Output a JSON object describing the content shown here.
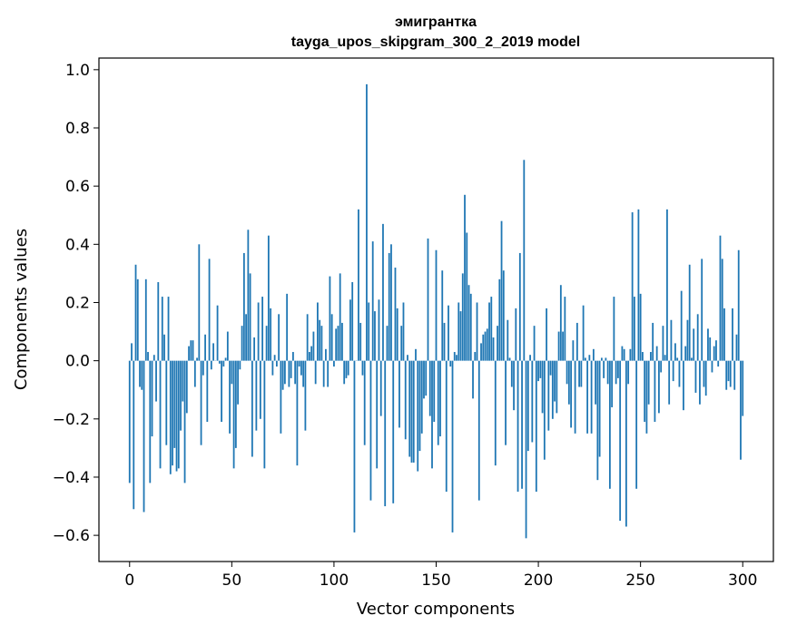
{
  "chart_data": {
    "type": "bar",
    "title_line1": "эмигрантка",
    "title_line2": "tayga_upos_skipgram_300_2_2019 model",
    "xlabel": "Vector components",
    "ylabel": "Components values",
    "xlim": [
      -15,
      315
    ],
    "ylim": [
      -0.69,
      1.04
    ],
    "xticks": [
      0,
      50,
      100,
      150,
      200,
      250,
      300
    ],
    "xtick_labels": [
      "0",
      "50",
      "100",
      "150",
      "200",
      "250",
      "300"
    ],
    "yticks": [
      -0.6,
      -0.4,
      -0.2,
      0.0,
      0.2,
      0.4,
      0.6,
      0.8,
      1.0
    ],
    "ytick_labels": [
      "−0.6",
      "−0.4",
      "−0.2",
      "0.0",
      "0.2",
      "0.4",
      "0.6",
      "0.8",
      "1.0"
    ],
    "bar_color": "#1f77b4",
    "grid": false,
    "values": [
      -0.42,
      0.06,
      -0.51,
      0.33,
      0.28,
      -0.09,
      -0.1,
      -0.52,
      0.28,
      0.03,
      -0.42,
      -0.26,
      0.02,
      -0.14,
      0.27,
      -0.37,
      0.22,
      0.09,
      -0.29,
      0.22,
      -0.39,
      -0.36,
      -0.3,
      -0.38,
      -0.37,
      -0.24,
      -0.14,
      -0.42,
      -0.18,
      0.05,
      0.07,
      0.07,
      -0.09,
      0.01,
      0.4,
      -0.29,
      -0.05,
      0.09,
      -0.21,
      0.35,
      -0.03,
      0.06,
      0.0,
      0.19,
      -0.01,
      -0.21,
      -0.02,
      0.01,
      0.1,
      -0.25,
      -0.08,
      -0.37,
      -0.3,
      -0.15,
      -0.03,
      0.12,
      0.37,
      0.16,
      0.45,
      0.3,
      -0.33,
      0.08,
      -0.24,
      0.2,
      -0.2,
      0.22,
      -0.37,
      0.12,
      0.43,
      0.18,
      -0.05,
      0.02,
      -0.02,
      0.16,
      -0.25,
      -0.1,
      -0.08,
      0.23,
      -0.09,
      -0.06,
      0.03,
      -0.08,
      -0.36,
      -0.02,
      -0.05,
      -0.09,
      -0.24,
      0.16,
      0.03,
      0.05,
      0.1,
      -0.08,
      0.2,
      0.14,
      0.12,
      -0.09,
      0.04,
      -0.09,
      0.29,
      0.16,
      -0.02,
      0.11,
      0.12,
      0.3,
      0.13,
      -0.08,
      -0.06,
      -0.05,
      0.21,
      0.27,
      -0.59,
      0.0,
      0.52,
      0.13,
      -0.05,
      -0.29,
      0.95,
      0.2,
      -0.48,
      0.41,
      0.17,
      -0.37,
      0.21,
      -0.19,
      0.47,
      -0.5,
      0.12,
      0.37,
      0.4,
      -0.49,
      0.32,
      0.18,
      -0.23,
      0.12,
      0.2,
      -0.27,
      0.02,
      -0.33,
      -0.35,
      -0.35,
      0.04,
      -0.38,
      -0.31,
      -0.25,
      -0.13,
      -0.12,
      0.42,
      -0.19,
      -0.37,
      -0.21,
      0.38,
      -0.29,
      -0.26,
      0.31,
      0.13,
      -0.45,
      0.19,
      -0.02,
      -0.59,
      0.03,
      0.02,
      0.2,
      0.17,
      0.3,
      0.57,
      0.44,
      0.26,
      0.23,
      -0.13,
      0.03,
      0.2,
      -0.48,
      0.06,
      0.09,
      0.1,
      0.11,
      0.2,
      0.22,
      0.08,
      -0.36,
      0.12,
      0.28,
      0.48,
      0.31,
      -0.29,
      0.14,
      0.01,
      -0.09,
      -0.17,
      0.18,
      -0.45,
      0.37,
      -0.44,
      0.69,
      -0.61,
      -0.31,
      0.02,
      -0.28,
      0.12,
      -0.45,
      -0.07,
      -0.06,
      -0.18,
      -0.34,
      0.18,
      -0.24,
      -0.05,
      -0.2,
      -0.14,
      -0.18,
      0.1,
      0.26,
      0.1,
      0.22,
      -0.08,
      -0.15,
      -0.23,
      0.07,
      -0.25,
      0.13,
      -0.09,
      -0.09,
      0.19,
      0.01,
      -0.25,
      0.02,
      -0.25,
      0.04,
      -0.15,
      -0.41,
      -0.33,
      0.01,
      -0.06,
      0.01,
      -0.08,
      -0.44,
      -0.16,
      0.22,
      -0.08,
      -0.06,
      -0.55,
      0.05,
      0.04,
      -0.57,
      -0.08,
      0.04,
      0.51,
      0.22,
      -0.44,
      0.52,
      0.23,
      0.03,
      -0.21,
      -0.25,
      -0.15,
      0.03,
      0.13,
      -0.21,
      0.05,
      -0.18,
      -0.04,
      0.12,
      0.02,
      0.52,
      -0.15,
      0.14,
      -0.07,
      0.06,
      0.01,
      -0.09,
      0.24,
      -0.17,
      0.05,
      0.14,
      0.33,
      0.01,
      0.11,
      -0.11,
      0.16,
      -0.15,
      0.35,
      -0.09,
      -0.12,
      0.11,
      0.08,
      -0.04,
      0.05,
      0.07,
      -0.02,
      0.43,
      0.35,
      0.18,
      -0.1,
      -0.07,
      -0.09,
      0.18,
      -0.1,
      0.09,
      0.38,
      -0.34,
      -0.19
    ]
  }
}
